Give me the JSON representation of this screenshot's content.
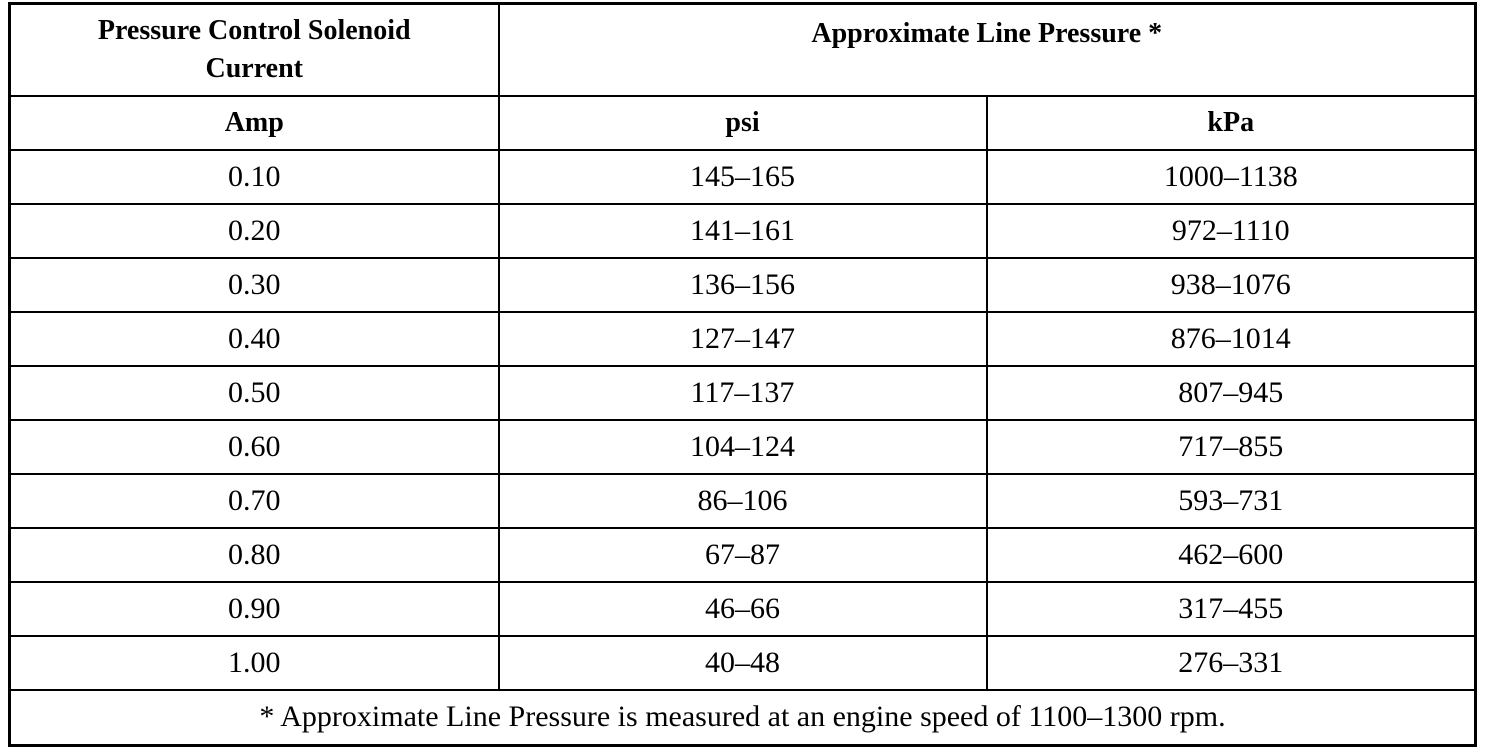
{
  "table": {
    "header": [
      "Pressure Control Solenoid Current",
      "Approximate Line Pressure *"
    ],
    "subheader": [
      "Amp",
      "psi",
      "kPa"
    ],
    "rows": [
      [
        "0.10",
        "145–165",
        "1000–1138"
      ],
      [
        "0.20",
        "141–161",
        "972–1110"
      ],
      [
        "0.30",
        "136–156",
        "938–1076"
      ],
      [
        "0.40",
        "127–147",
        "876–1014"
      ],
      [
        "0.50",
        "117–137",
        "807–945"
      ],
      [
        "0.60",
        "104–124",
        "717–855"
      ],
      [
        "0.70",
        "86–106",
        "593–731"
      ],
      [
        "0.80",
        "67–87",
        "462–600"
      ],
      [
        "0.90",
        "46–66",
        "317–455"
      ],
      [
        "1.00",
        "40–48",
        "276–331"
      ]
    ],
    "footnote": "* Approximate Line Pressure is measured at an engine speed of 1100–1300 rpm."
  }
}
